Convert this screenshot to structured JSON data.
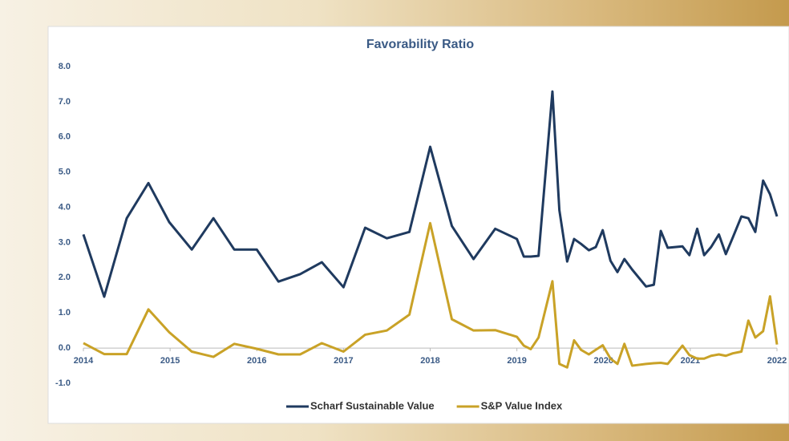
{
  "chart_data": {
    "type": "line",
    "title": "Favorability Ratio",
    "x": [
      2014.0,
      2014.24,
      2014.5,
      2014.75,
      2014.99,
      2015.25,
      2015.5,
      2015.74,
      2016.0,
      2016.25,
      2016.5,
      2016.75,
      2017.0,
      2017.25,
      2017.5,
      2017.76,
      2018.0,
      2018.25,
      2018.5,
      2018.75,
      2019.0,
      2019.08,
      2019.16,
      2019.25,
      2019.41,
      2019.49,
      2019.58,
      2019.66,
      2019.74,
      2019.83,
      2019.91,
      2019.99,
      2020.08,
      2020.16,
      2020.24,
      2020.33,
      2020.49,
      2020.58,
      2020.66,
      2020.74,
      2020.91,
      2020.99,
      2021.08,
      2021.16,
      2021.24,
      2021.33,
      2021.41,
      2021.49,
      2021.59,
      2021.67,
      2021.75,
      2021.84,
      2021.92,
      2022.0
    ],
    "series": [
      {
        "name": "Scharf Sustainable Value",
        "color": "#1f3a5f",
        "values": [
          3.23,
          1.46,
          3.69,
          4.69,
          3.58,
          2.8,
          3.69,
          2.8,
          2.8,
          1.89,
          2.1,
          2.44,
          1.73,
          3.42,
          3.12,
          3.3,
          5.72,
          3.47,
          2.53,
          3.39,
          3.1,
          2.6,
          2.6,
          2.62,
          7.29,
          3.92,
          2.46,
          3.1,
          2.96,
          2.78,
          2.87,
          3.35,
          2.48,
          2.16,
          2.53,
          2.23,
          1.75,
          1.8,
          3.33,
          2.85,
          2.89,
          2.64,
          3.39,
          2.64,
          2.87,
          3.23,
          2.67,
          3.14,
          3.74,
          3.69,
          3.3,
          4.76,
          4.37,
          3.74
        ]
      },
      {
        "name": "S&P Value Index",
        "color": "#c9a227",
        "values": [
          0.14,
          -0.17,
          -0.17,
          1.1,
          0.45,
          -0.1,
          -0.25,
          0.12,
          -0.02,
          -0.18,
          -0.18,
          0.14,
          -0.1,
          0.38,
          0.5,
          0.95,
          3.55,
          0.82,
          0.5,
          0.51,
          0.32,
          0.07,
          -0.03,
          0.3,
          1.9,
          -0.45,
          -0.55,
          0.22,
          -0.05,
          -0.18,
          -0.05,
          0.08,
          -0.3,
          -0.45,
          0.12,
          -0.5,
          -0.45,
          -0.43,
          -0.42,
          -0.45,
          0.07,
          -0.2,
          -0.3,
          -0.3,
          -0.22,
          -0.18,
          -0.22,
          -0.15,
          -0.1,
          0.78,
          0.3,
          0.48,
          1.47,
          0.1
        ]
      }
    ],
    "xlim": [
      2014,
      2022
    ],
    "xticks": [
      2014,
      2015,
      2016,
      2017,
      2018,
      2019,
      2020,
      2021,
      2022
    ],
    "ylim": [
      -1,
      8
    ],
    "yticks": [
      {
        "value": -1,
        "label": "-1.0"
      },
      {
        "value": 0,
        "label": "0.0"
      },
      {
        "value": 1,
        "label": "1.0"
      },
      {
        "value": 2,
        "label": "2.0"
      },
      {
        "value": 3,
        "label": "3.0"
      },
      {
        "value": 4,
        "label": "4.0"
      },
      {
        "value": 5,
        "label": "5.0"
      },
      {
        "value": 6,
        "label": "6.0"
      },
      {
        "value": 7,
        "label": "7.0"
      },
      {
        "value": 8,
        "label": "8.0"
      }
    ],
    "grid": false,
    "legend": "bottom"
  }
}
